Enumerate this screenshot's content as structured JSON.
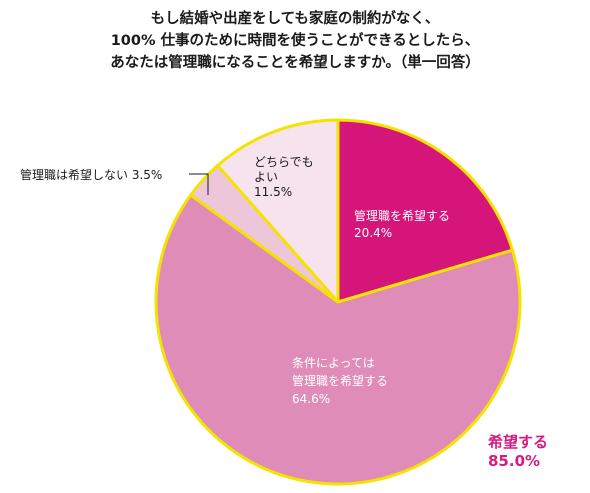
{
  "chart_data": {
    "type": "pie",
    "title": [
      "もし結婚や出産をしても家庭の制約がなく、",
      "100% 仕事のために時間を使うことができるとしたら、",
      "あなたは管理職になることを希望しますか。（単一回答）"
    ],
    "slices": [
      {
        "label_lines": [
          "管理職を希望する",
          "20.4%"
        ],
        "value": 20.4,
        "color": "#d6157a",
        "text_color": "#ffffff"
      },
      {
        "label_lines": [
          "条件によっては",
          "管理職を希望する",
          "64.6%"
        ],
        "value": 64.6,
        "color": "#e08cb8",
        "text_color": "#ffffff"
      },
      {
        "label_lines": [
          "管理職は希望しない 3.5%"
        ],
        "value": 3.5,
        "color": "#edc6da",
        "text_color": "#1a1a1a"
      },
      {
        "label_lines": [
          "どちらでも",
          "よい",
          "11.5%"
        ],
        "value": 11.5,
        "color": "#f6e3ee",
        "text_color": "#1a1a1a"
      }
    ],
    "summary": {
      "lines": [
        "希望する",
        "85.0%"
      ],
      "color": "#d61a7f"
    },
    "border_color": "#f4e300"
  }
}
